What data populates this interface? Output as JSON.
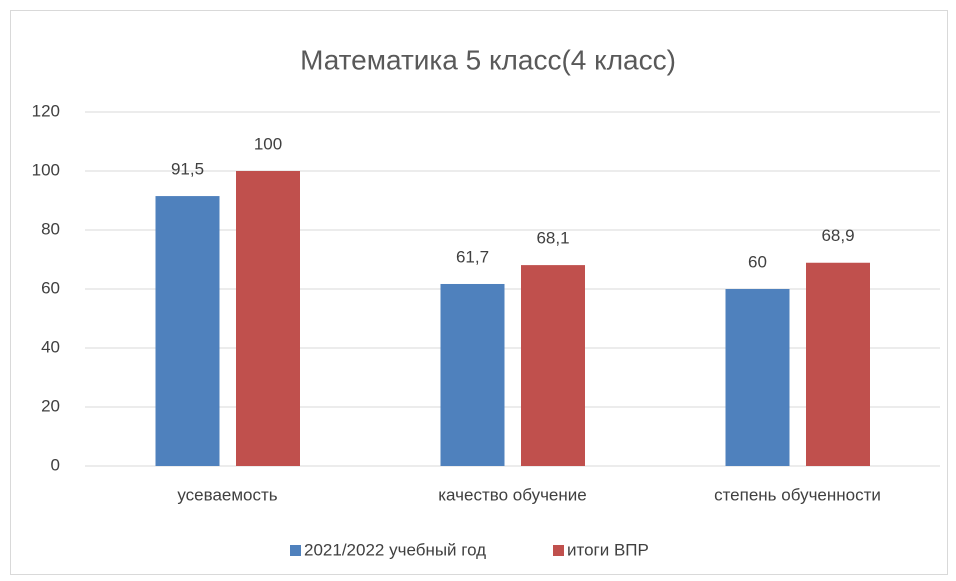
{
  "chart_data": {
    "type": "bar",
    "title": "Математика 5 класс(4 класс)",
    "categories": [
      "усеваемость",
      "качество обучение",
      "степень обученности"
    ],
    "series": [
      {
        "name": "2021/2022 учебный год",
        "color": "#4f81bd",
        "values": [
          91.5,
          61.7,
          60
        ],
        "value_labels": [
          "91,5",
          "61,7",
          "60"
        ]
      },
      {
        "name": "итоги ВПР",
        "color": "#c0504d",
        "values": [
          100,
          68.1,
          68.9
        ],
        "value_labels": [
          "100",
          "68,1",
          "68,9"
        ]
      }
    ],
    "ylim": [
      0,
      120
    ],
    "yticks": [
      0,
      20,
      40,
      60,
      80,
      100,
      120
    ],
    "grid": true,
    "legend": "bottom"
  }
}
